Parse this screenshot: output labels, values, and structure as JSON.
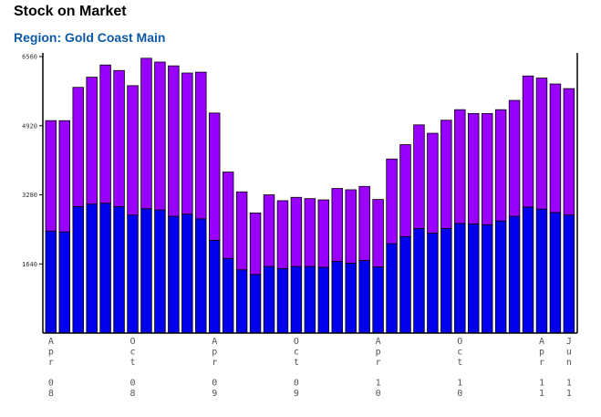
{
  "title": "Stock on Market",
  "subtitle": "Region: Gold Coast Main",
  "colors": {
    "lower": "#0000ee",
    "upper": "#9900ff",
    "outline": "#000000",
    "axis": "#000000"
  },
  "chart_data": {
    "type": "bar",
    "stacked": true,
    "title": "Stock on Market",
    "subtitle": "Region: Gold Coast Main",
    "ylim": [
      0,
      6560
    ],
    "yticks": [
      1640,
      3280,
      4920,
      6560
    ],
    "grid": false,
    "x_tick_labels": [
      {
        "index": 0,
        "chars": [
          "A",
          "p",
          "r",
          "",
          "0",
          "8"
        ]
      },
      {
        "index": 6,
        "chars": [
          "O",
          "c",
          "t",
          "",
          "0",
          "8"
        ]
      },
      {
        "index": 12,
        "chars": [
          "A",
          "p",
          "r",
          "",
          "0",
          "9"
        ]
      },
      {
        "index": 18,
        "chars": [
          "O",
          "c",
          "t",
          "",
          "0",
          "9"
        ]
      },
      {
        "index": 24,
        "chars": [
          "A",
          "p",
          "r",
          "",
          "1",
          "0"
        ]
      },
      {
        "index": 30,
        "chars": [
          "O",
          "c",
          "t",
          "",
          "1",
          "0"
        ]
      },
      {
        "index": 36,
        "chars": [
          "A",
          "p",
          "r",
          "",
          "1",
          "1"
        ]
      },
      {
        "index": 38,
        "chars": [
          "J",
          "u",
          "n",
          "",
          "1",
          "1"
        ]
      }
    ],
    "series": [
      {
        "name": "lower",
        "values": [
          2420,
          2400,
          3000,
          3060,
          3080,
          3000,
          2800,
          2950,
          2920,
          2770,
          2820,
          2710,
          2200,
          1770,
          1500,
          1390,
          1580,
          1530,
          1580,
          1580,
          1560,
          1700,
          1660,
          1720,
          1570,
          2120,
          2290,
          2480,
          2370,
          2480,
          2600,
          2590,
          2570,
          2660,
          2770,
          2990,
          2940,
          2860,
          2800
        ]
      },
      {
        "name": "upper",
        "values": [
          2620,
          2640,
          2830,
          3010,
          3280,
          3230,
          3070,
          3570,
          3510,
          3570,
          3350,
          3480,
          3020,
          2050,
          1850,
          1460,
          1700,
          1610,
          1640,
          1610,
          1600,
          1730,
          1740,
          1760,
          1600,
          2010,
          2180,
          2460,
          2370,
          2570,
          2700,
          2620,
          2640,
          2640,
          2750,
          3110,
          3110,
          3050,
          3000
        ]
      }
    ]
  }
}
